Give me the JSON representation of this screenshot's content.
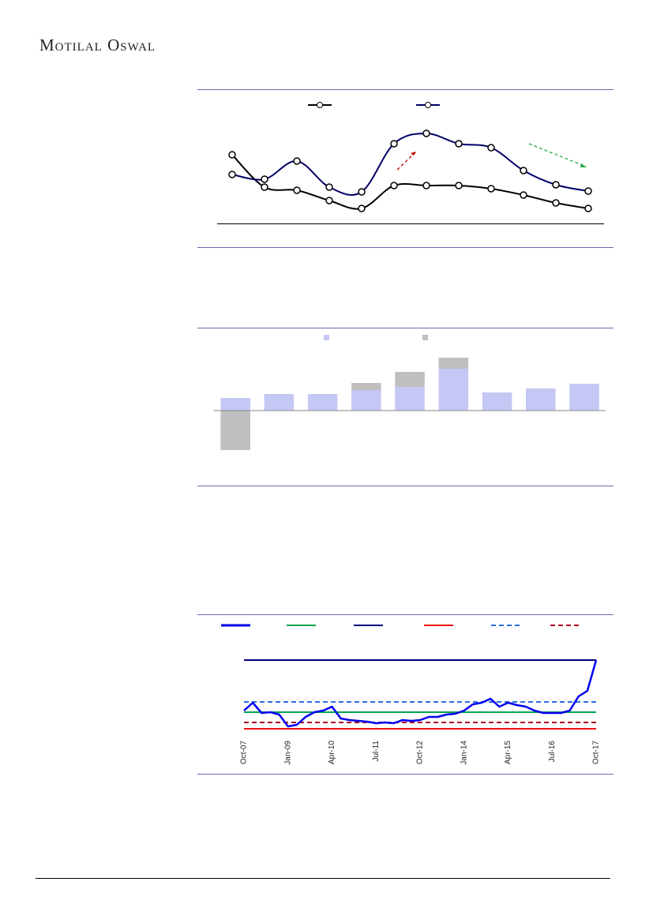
{
  "header": {
    "title": "Motilal Oswal"
  },
  "chart_data": [
    {
      "type": "line",
      "series": [
        {
          "color": "#000000",
          "values": [
            87,
            46,
            42,
            29,
            19,
            48,
            48,
            48,
            44,
            36,
            26,
            19
          ]
        },
        {
          "color": "#000066",
          "values": [
            62,
            56,
            79,
            46,
            40,
            101,
            114,
            101,
            96,
            67,
            49,
            41
          ]
        }
      ],
      "ylim": [
        0,
        150
      ]
    },
    {
      "type": "stacked_bar",
      "series": [
        {
          "color": "#c5c8f5",
          "values": [
            16,
            21,
            21,
            26,
            30,
            53,
            23,
            28,
            34
          ]
        },
        {
          "color": "#bfbfbf",
          "values": [
            -50,
            0,
            0,
            9,
            19,
            14,
            0,
            0,
            0
          ]
        }
      ],
      "ylim": [
        -60,
        90
      ]
    },
    {
      "type": "line",
      "categories": [
        "Oct-07",
        null,
        null,
        null,
        null,
        "Jan-09",
        null,
        null,
        null,
        null,
        "Apr-10",
        null,
        null,
        null,
        null,
        "Jul-11",
        null,
        null,
        null,
        null,
        "Oct-12",
        null,
        null,
        null,
        null,
        "Jan-14",
        null,
        null,
        null,
        null,
        "Apr-15",
        null,
        null,
        null,
        null,
        "Jul-16",
        null,
        null,
        null,
        null,
        "Oct-17"
      ],
      "series": [
        {
          "color": "#0000ee",
          "values": [
            30,
            40,
            27,
            28,
            25,
            10,
            12,
            22,
            28,
            30,
            35,
            20,
            18,
            17,
            16,
            14,
            15,
            14,
            18,
            17,
            18,
            22,
            22,
            25,
            26,
            30,
            38,
            40,
            45,
            35,
            40,
            37,
            35,
            30,
            27,
            27,
            27,
            30,
            48,
            55,
            94
          ]
        }
      ],
      "reference_lines": [
        {
          "color": "#00a651",
          "value": 28,
          "dash": false
        },
        {
          "color": "#000080",
          "value": 94,
          "dash": false
        },
        {
          "color": "#ee1111",
          "value": 7,
          "dash": false
        },
        {
          "color": "#2a6fe0",
          "value": 41,
          "dash": true
        },
        {
          "color": "#aa0022",
          "value": 15,
          "dash": true
        }
      ],
      "ylim": [
        0,
        110
      ]
    }
  ]
}
